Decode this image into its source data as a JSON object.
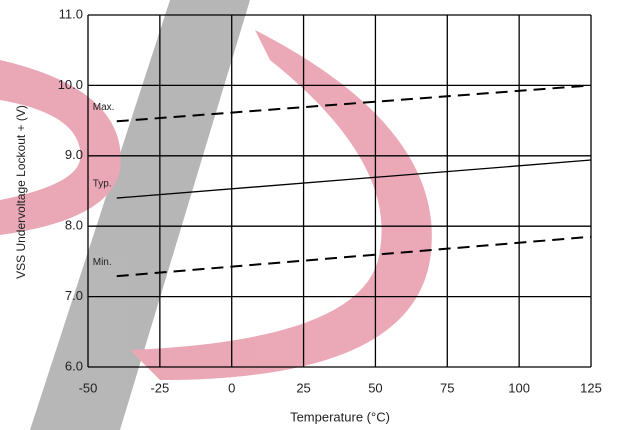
{
  "chart_data": {
    "type": "line",
    "x_label": "Temperature (°C)",
    "y_label": "VSS Undervoltage Lockout + (V)",
    "xlim": [
      -50,
      125
    ],
    "xticks": [
      -50,
      -25,
      0,
      25,
      50,
      75,
      100,
      125
    ],
    "ylim": [
      6,
      11
    ],
    "yticks": [
      {
        "value": 6,
        "label": "6.0"
      },
      {
        "value": 7,
        "label": "7.0"
      },
      {
        "value": 8,
        "label": "8.0"
      },
      {
        "value": 9,
        "label": "9.0"
      },
      {
        "value": 10,
        "label": "10.0"
      },
      {
        "value": 11,
        "label": "11.0"
      }
    ],
    "grid": true,
    "x": [
      -40,
      125
    ],
    "series": [
      {
        "name": "Max.",
        "color": "#000000",
        "style": "dashed",
        "values": [
          9.49,
          10.0
        ]
      },
      {
        "name": "Typ.",
        "color": "#000000",
        "style": "solid",
        "values": [
          8.4,
          8.94
        ]
      },
      {
        "name": "Min.",
        "color": "#000000",
        "style": "dashed",
        "values": [
          7.29,
          7.85
        ]
      }
    ]
  }
}
